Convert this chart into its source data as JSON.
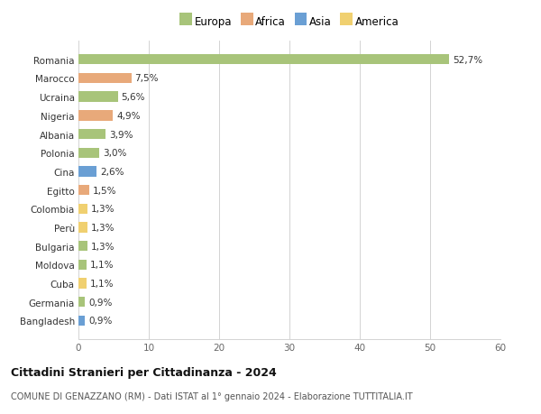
{
  "countries": [
    "Bangladesh",
    "Germania",
    "Cuba",
    "Moldova",
    "Bulgaria",
    "Perù",
    "Colombia",
    "Egitto",
    "Cina",
    "Polonia",
    "Albania",
    "Nigeria",
    "Ucraina",
    "Marocco",
    "Romania"
  ],
  "values": [
    0.9,
    0.9,
    1.1,
    1.1,
    1.3,
    1.3,
    1.3,
    1.5,
    2.6,
    3.0,
    3.9,
    4.9,
    5.6,
    7.5,
    52.7
  ],
  "labels": [
    "0,9%",
    "0,9%",
    "1,1%",
    "1,1%",
    "1,3%",
    "1,3%",
    "1,3%",
    "1,5%",
    "2,6%",
    "3,0%",
    "3,9%",
    "4,9%",
    "5,6%",
    "7,5%",
    "52,7%"
  ],
  "continents": [
    "Asia",
    "Europa",
    "America",
    "Europa",
    "Europa",
    "America",
    "America",
    "Africa",
    "Asia",
    "Europa",
    "Europa",
    "Africa",
    "Europa",
    "Africa",
    "Europa"
  ],
  "colors": {
    "Europa": "#a8c47a",
    "Africa": "#e8a97a",
    "Asia": "#6a9fd4",
    "America": "#f0d070"
  },
  "legend_order": [
    "Europa",
    "Africa",
    "Asia",
    "America"
  ],
  "title": "Cittadini Stranieri per Cittadinanza - 2024",
  "subtitle": "COMUNE DI GENAZZANO (RM) - Dati ISTAT al 1° gennaio 2024 - Elaborazione TUTTITALIA.IT",
  "xlim": [
    0,
    60
  ],
  "xticks": [
    0,
    10,
    20,
    30,
    40,
    50,
    60
  ],
  "background_color": "#ffffff"
}
